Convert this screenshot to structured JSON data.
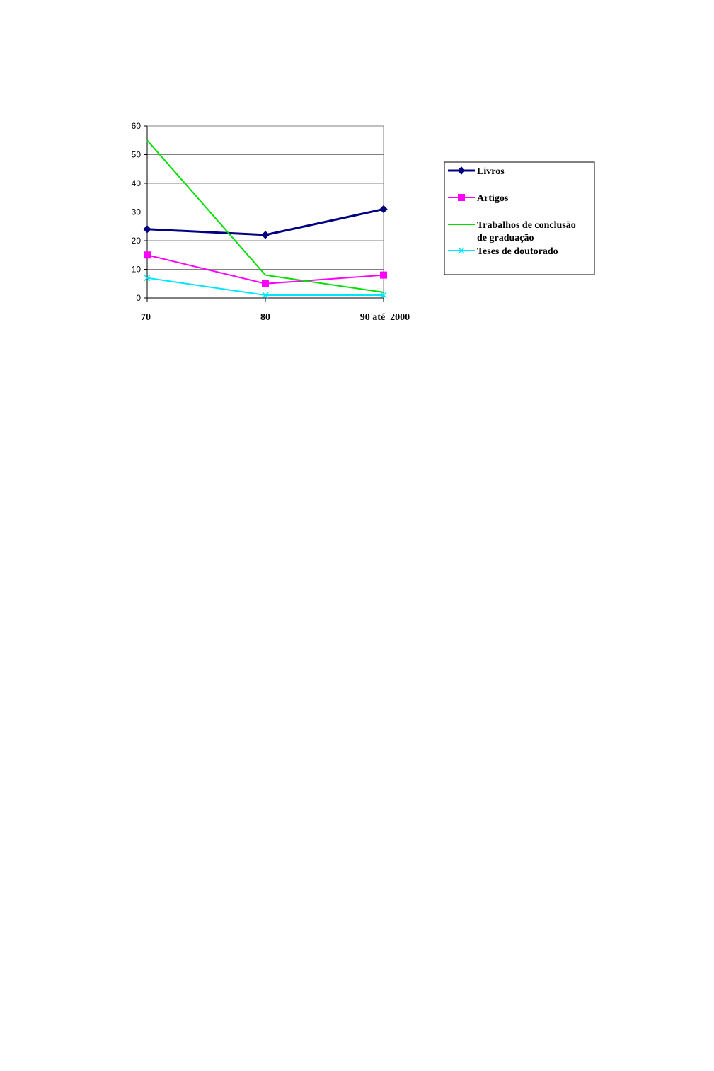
{
  "chart_data": {
    "type": "line",
    "categories": [
      "70",
      "80",
      "90 até  2000"
    ],
    "ylim": [
      0,
      60
    ],
    "yticks": [
      0,
      10,
      20,
      30,
      40,
      50,
      60
    ],
    "grid": true,
    "legend_position": "right",
    "series": [
      {
        "name": "Livros",
        "values": [
          24,
          22,
          31
        ],
        "color": "#000080",
        "marker": "diamond"
      },
      {
        "name": "Artigos",
        "values": [
          15,
          5,
          8
        ],
        "color": "#ff00ff",
        "marker": "square"
      },
      {
        "name": "Trabalhos de conclusão de graduação",
        "name_lines": [
          "Trabalhos de conclusão",
          "de graduação"
        ],
        "values": [
          55,
          8,
          2
        ],
        "color": "#00e000",
        "marker": "triangle"
      },
      {
        "name": "Teses de doutorado",
        "values": [
          7,
          1,
          1
        ],
        "color": "#00e5ff",
        "marker": "x"
      }
    ]
  }
}
